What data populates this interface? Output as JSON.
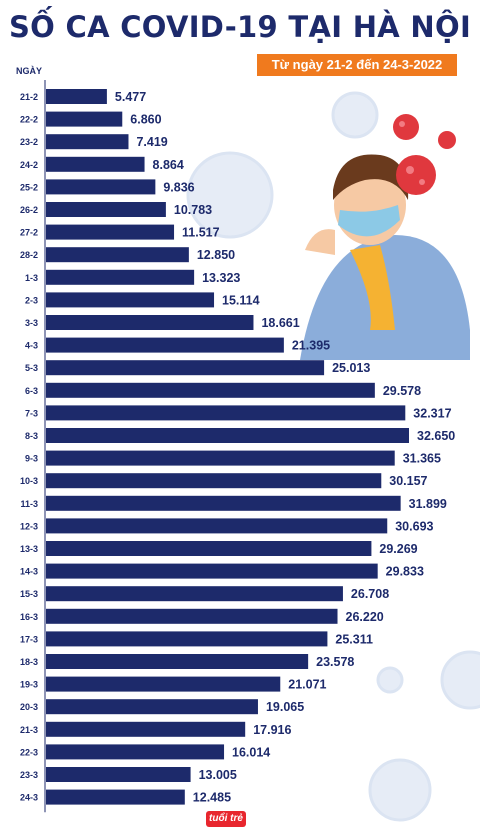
{
  "header": {
    "title": "SỐ CA COVID-19 TẠI HÀ NỘI",
    "subtitle": "Từ ngày 21-2 đến 24-3-2022"
  },
  "logo": {
    "text": "tuổi trẻ"
  },
  "colors": {
    "bar": "#1d2a6b",
    "accent": "#f07a1e",
    "title": "#1d2a6b",
    "label": "#1d2a6b"
  },
  "chart_data": {
    "type": "bar",
    "orientation": "horizontal",
    "title": "SỐ CA COVID-19 TẠI HÀ NỘI",
    "subtitle": "Từ ngày 21-2 đến 24-3-2022",
    "ylabel": "NGÀY",
    "xlabel": "",
    "xlim": [
      0,
      35000
    ],
    "categories": [
      "21-2",
      "22-2",
      "23-2",
      "24-2",
      "25-2",
      "26-2",
      "27-2",
      "28-2",
      "1-3",
      "2-3",
      "3-3",
      "4-3",
      "5-3",
      "6-3",
      "7-3",
      "8-3",
      "9-3",
      "10-3",
      "11-3",
      "12-3",
      "13-3",
      "14-3",
      "15-3",
      "16-3",
      "17-3",
      "18-3",
      "19-3",
      "20-3",
      "21-3",
      "22-3",
      "23-3",
      "24-3"
    ],
    "values": [
      5477,
      6860,
      7419,
      8864,
      9836,
      10783,
      11517,
      12850,
      13323,
      15114,
      18661,
      21395,
      25013,
      29578,
      32317,
      32650,
      31365,
      30157,
      31899,
      30693,
      29269,
      29833,
      26708,
      26220,
      25311,
      23578,
      21071,
      19065,
      17916,
      16014,
      13005,
      12485
    ],
    "value_labels": [
      "5.477",
      "6.860",
      "7.419",
      "8.864",
      "9.836",
      "10.783",
      "11.517",
      "12.850",
      "13.323",
      "15.114",
      "18.661",
      "21.395",
      "25.013",
      "29.578",
      "32.317",
      "32.650",
      "31.365",
      "30.157",
      "31.899",
      "30.693",
      "29.269",
      "29.833",
      "26.708",
      "26.220",
      "25.311",
      "23.578",
      "21.071",
      "19.065",
      "17.916",
      "16.014",
      "13.005",
      "12.485"
    ],
    "grid": false,
    "legend": "none"
  }
}
